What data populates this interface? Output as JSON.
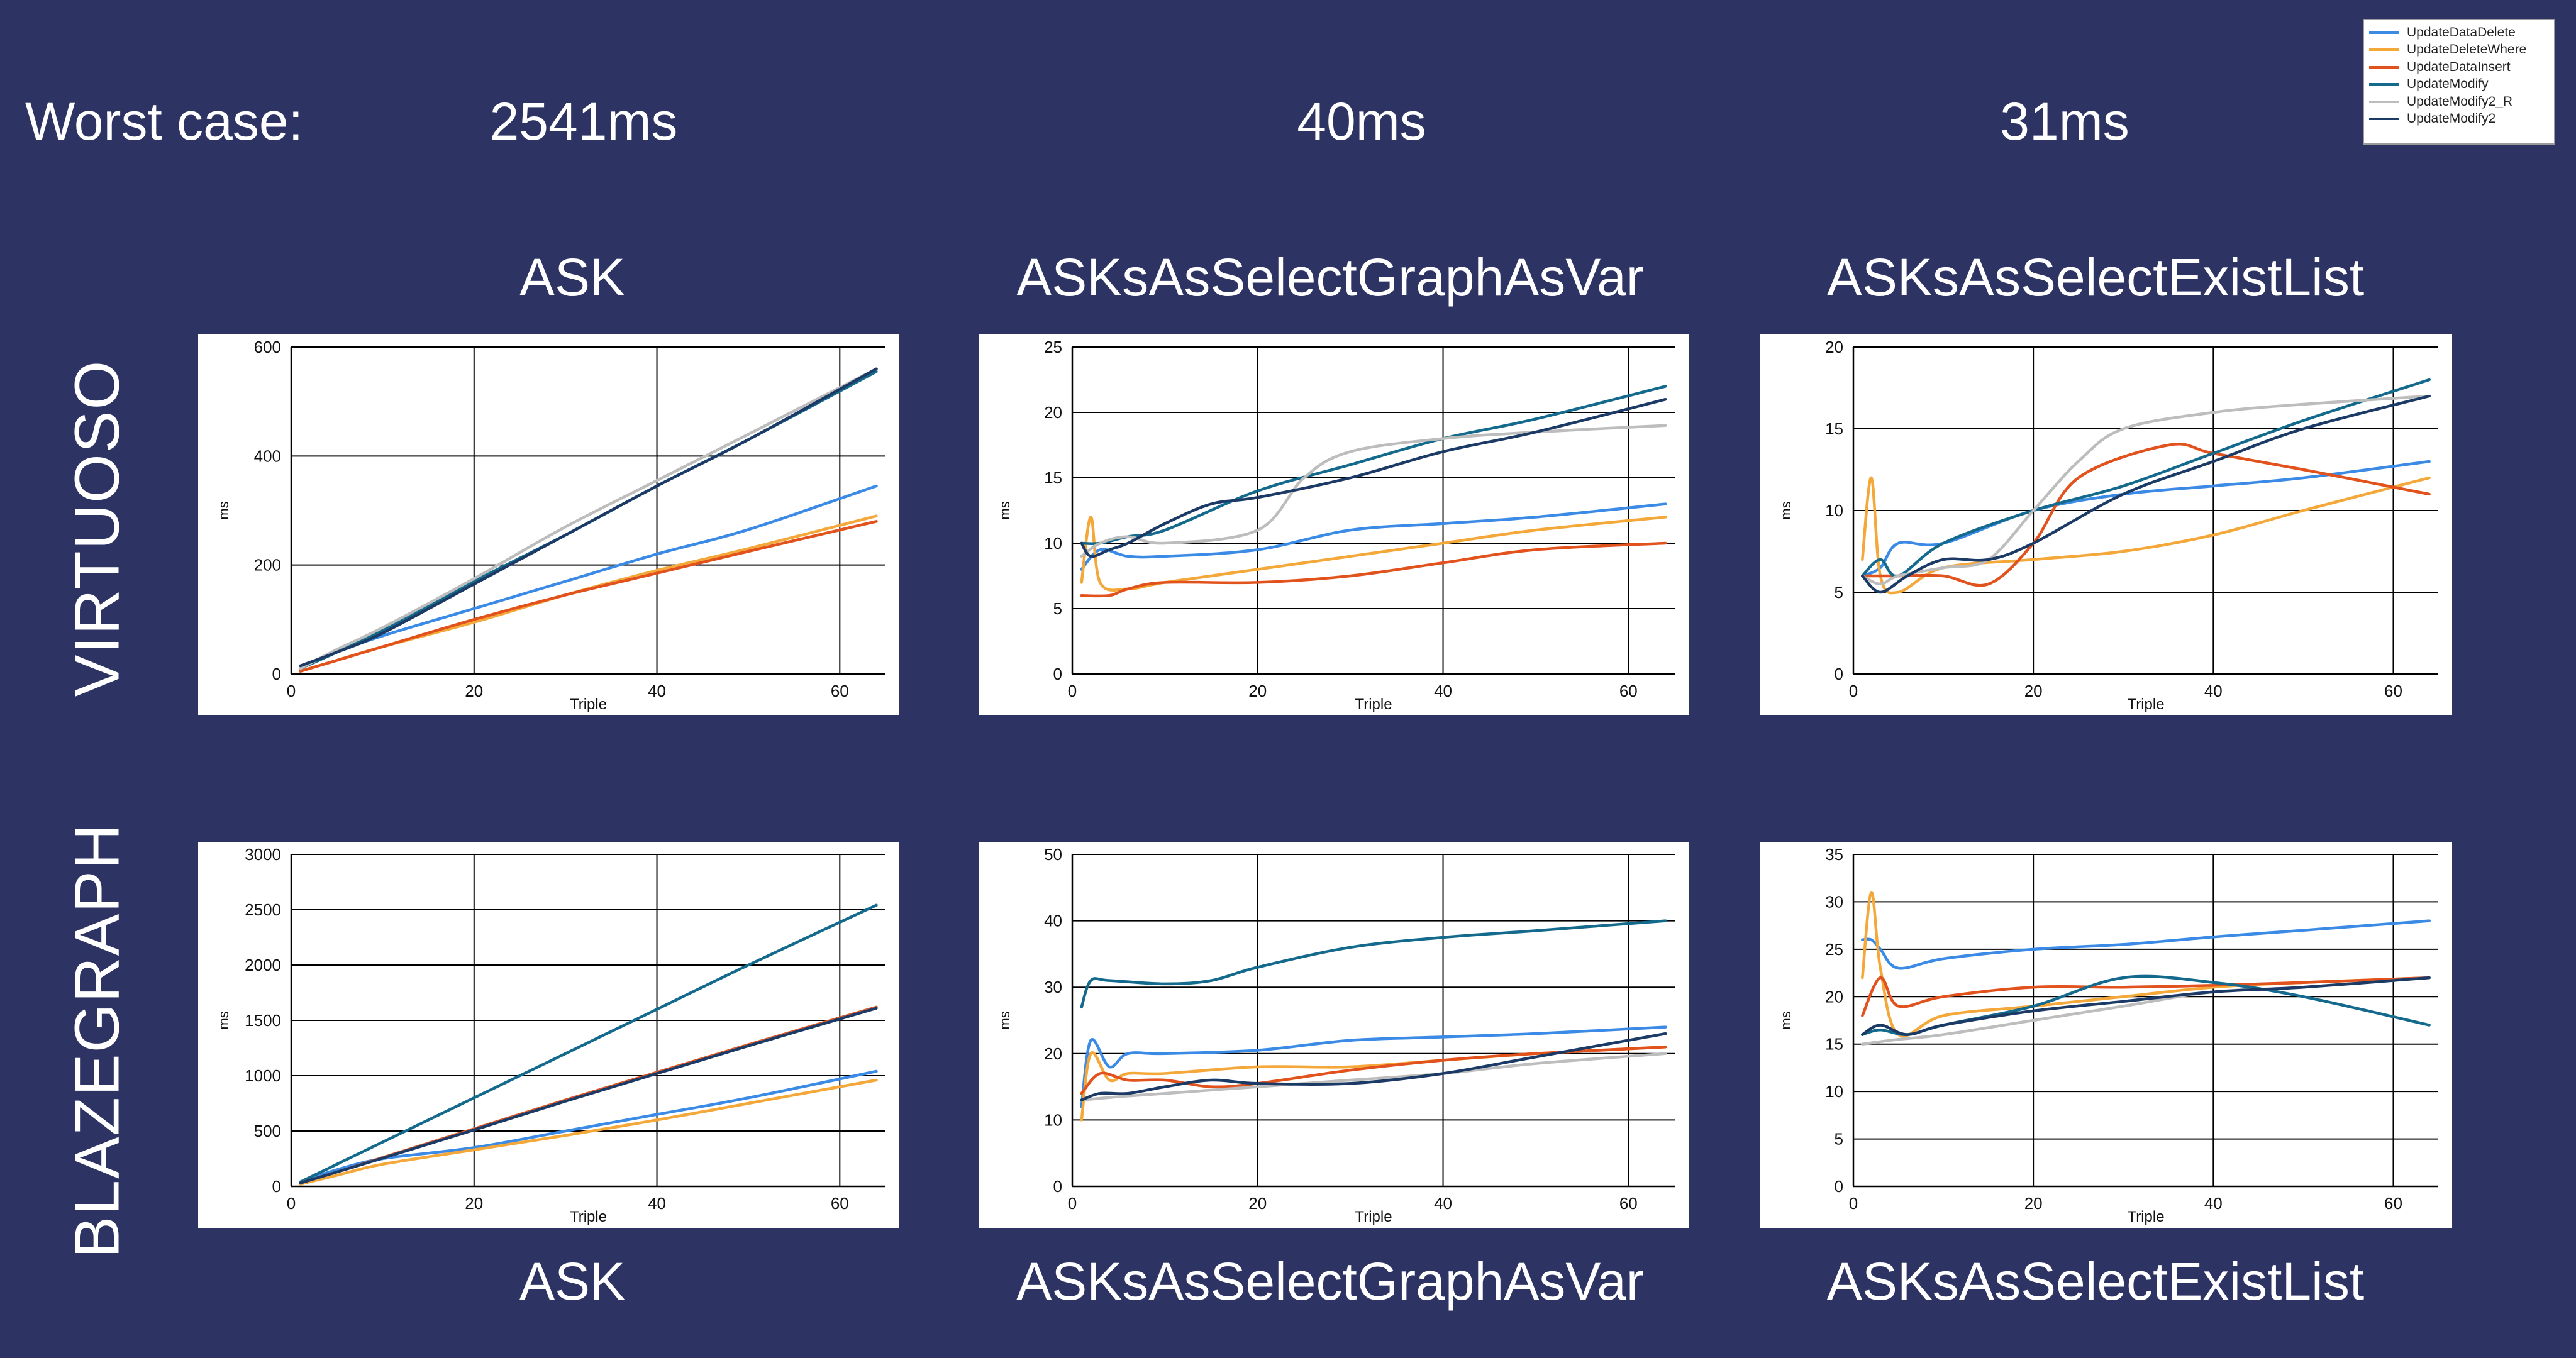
{
  "header": {
    "label": "Worst case:",
    "values": [
      "2541ms",
      "40ms",
      "31ms"
    ]
  },
  "columns": [
    "ASK",
    "ASKsAsSelectGraphAsVar",
    "ASKsAsSelectExistList"
  ],
  "rows": [
    "VIRTUOSO",
    "BLAZEGRAPH"
  ],
  "legend": [
    {
      "name": "UpdateDataDelete",
      "color": "#3b8be6"
    },
    {
      "name": "UpdateDeleteWhere",
      "color": "#f5a83a"
    },
    {
      "name": "UpdateDataInsert",
      "color": "#e2521d"
    },
    {
      "name": "UpdateModify",
      "color": "#146a8c"
    },
    {
      "name": "UpdateModify2_R",
      "color": "#bdbdbd"
    },
    {
      "name": "UpdateModify2",
      "color": "#1c3a66"
    }
  ],
  "chart_data": [
    {
      "type": "line",
      "title": "ASK",
      "row": "VIRTUOSO",
      "xlabel": "Triple",
      "ylabel": "ms",
      "xlim": [
        0,
        65
      ],
      "ylim": [
        0,
        600
      ],
      "xticks": [
        0,
        20,
        40,
        60
      ],
      "yticks": [
        0,
        200,
        400,
        600
      ],
      "grid": true,
      "series": [
        {
          "name": "UpdateDataDelete",
          "x": [
            1,
            5,
            10,
            20,
            30,
            40,
            50,
            64
          ],
          "y": [
            10,
            40,
            70,
            120,
            170,
            220,
            265,
            345
          ]
        },
        {
          "name": "UpdateDeleteWhere",
          "x": [
            1,
            5,
            10,
            20,
            30,
            40,
            50,
            64
          ],
          "y": [
            5,
            25,
            50,
            95,
            145,
            190,
            230,
            290
          ]
        },
        {
          "name": "UpdateDataInsert",
          "x": [
            1,
            5,
            10,
            20,
            30,
            40,
            50,
            64
          ],
          "y": [
            5,
            25,
            50,
            100,
            145,
            185,
            225,
            280
          ]
        },
        {
          "name": "UpdateModify",
          "x": [
            1,
            5,
            10,
            20,
            30,
            40,
            50,
            64
          ],
          "y": [
            10,
            40,
            80,
            170,
            255,
            345,
            430,
            555
          ]
        },
        {
          "name": "UpdateModify2_R",
          "x": [
            1,
            5,
            10,
            20,
            30,
            40,
            50,
            64
          ],
          "y": [
            10,
            45,
            85,
            175,
            270,
            355,
            440,
            560
          ]
        },
        {
          "name": "UpdateModify2",
          "x": [
            1,
            5,
            10,
            20,
            30,
            40,
            50,
            64
          ],
          "y": [
            15,
            40,
            75,
            165,
            255,
            345,
            430,
            560
          ]
        }
      ]
    },
    {
      "type": "line",
      "title": "ASKsAsSelectGraphAsVar",
      "row": "VIRTUOSO",
      "xlabel": "Triple",
      "ylabel": "ms",
      "xlim": [
        0,
        65
      ],
      "ylim": [
        0,
        25
      ],
      "xticks": [
        0,
        20,
        40,
        60
      ],
      "yticks": [
        0,
        5,
        10,
        15,
        20,
        25
      ],
      "grid": true,
      "series": [
        {
          "name": "UpdateDataDelete",
          "x": [
            1,
            3,
            6,
            10,
            20,
            30,
            40,
            50,
            64
          ],
          "y": [
            8,
            9.5,
            9,
            9,
            9.5,
            11,
            11.5,
            12,
            13
          ]
        },
        {
          "name": "UpdateDeleteWhere",
          "x": [
            1,
            2,
            3,
            6,
            10,
            20,
            30,
            40,
            50,
            64
          ],
          "y": [
            7,
            12,
            7,
            6.5,
            7,
            8,
            9,
            10,
            11,
            12
          ]
        },
        {
          "name": "UpdateDataInsert",
          "x": [
            1,
            4,
            6,
            10,
            20,
            30,
            40,
            50,
            64
          ],
          "y": [
            6,
            6,
            6.5,
            7,
            7,
            7.5,
            8.5,
            9.5,
            10
          ]
        },
        {
          "name": "UpdateModify",
          "x": [
            1,
            3,
            6,
            10,
            20,
            30,
            40,
            50,
            64
          ],
          "y": [
            10,
            10,
            10.5,
            11,
            14,
            16,
            18,
            19.5,
            22
          ]
        },
        {
          "name": "UpdateModify2_R",
          "x": [
            1,
            3,
            6,
            10,
            20,
            25,
            30,
            40,
            50,
            64
          ],
          "y": [
            9,
            10,
            10.5,
            10,
            11,
            15,
            17,
            18,
            18.5,
            19
          ]
        },
        {
          "name": "UpdateModify2",
          "x": [
            1,
            2,
            4,
            6,
            10,
            15,
            20,
            30,
            40,
            50,
            64
          ],
          "y": [
            10,
            9,
            9.5,
            10,
            11.5,
            13,
            13.5,
            15,
            17,
            18.5,
            21
          ]
        }
      ]
    },
    {
      "type": "line",
      "title": "ASKsAsSelectExistList",
      "row": "VIRTUOSO",
      "xlabel": "Triple",
      "ylabel": "ms",
      "xlim": [
        0,
        65
      ],
      "ylim": [
        0,
        20
      ],
      "xticks": [
        0,
        20,
        40,
        60
      ],
      "yticks": [
        0,
        5,
        10,
        15,
        20
      ],
      "grid": true,
      "series": [
        {
          "name": "UpdateDataDelete",
          "x": [
            1,
            3,
            5,
            10,
            20,
            30,
            40,
            50,
            64
          ],
          "y": [
            6,
            6.5,
            8,
            8,
            10,
            11,
            11.5,
            12,
            13
          ]
        },
        {
          "name": "UpdateDeleteWhere",
          "x": [
            1,
            2,
            3,
            5,
            10,
            20,
            30,
            40,
            50,
            64
          ],
          "y": [
            7,
            12,
            6,
            5,
            6.5,
            7,
            7.5,
            8.5,
            10,
            12
          ]
        },
        {
          "name": "UpdateDataInsert",
          "x": [
            1,
            5,
            10,
            15,
            20,
            25,
            35,
            40,
            50,
            64
          ],
          "y": [
            6,
            6,
            6,
            5.5,
            8,
            12,
            14,
            13.5,
            12.5,
            11
          ]
        },
        {
          "name": "UpdateModify",
          "x": [
            1,
            3,
            5,
            10,
            20,
            30,
            40,
            50,
            64
          ],
          "y": [
            6,
            7,
            6,
            8,
            10,
            11.5,
            13.5,
            15.5,
            18
          ]
        },
        {
          "name": "UpdateModify2_R",
          "x": [
            1,
            3,
            5,
            10,
            15,
            20,
            25,
            30,
            40,
            50,
            64
          ],
          "y": [
            6,
            5.5,
            6,
            6.5,
            7,
            10,
            13,
            15,
            16,
            16.5,
            17
          ]
        },
        {
          "name": "UpdateModify2",
          "x": [
            1,
            3,
            6,
            10,
            15,
            20,
            30,
            40,
            50,
            64
          ],
          "y": [
            6,
            5,
            6,
            7,
            7,
            8,
            11,
            13,
            15,
            17
          ]
        }
      ]
    },
    {
      "type": "line",
      "title": "ASK",
      "row": "BLAZEGRAPH",
      "xlabel": "Triple",
      "ylabel": "ms",
      "xlim": [
        0,
        65
      ],
      "ylim": [
        0,
        3000
      ],
      "xticks": [
        0,
        20,
        40,
        60
      ],
      "yticks": [
        0,
        500,
        1000,
        1500,
        2000,
        2500,
        3000
      ],
      "grid": true,
      "series": [
        {
          "name": "UpdateDataDelete",
          "x": [
            1,
            5,
            10,
            20,
            30,
            40,
            50,
            64
          ],
          "y": [
            40,
            150,
            250,
            350,
            500,
            650,
            800,
            1040
          ]
        },
        {
          "name": "UpdateDeleteWhere",
          "x": [
            1,
            5,
            10,
            20,
            30,
            40,
            50,
            64
          ],
          "y": [
            20,
            100,
            200,
            330,
            460,
            600,
            750,
            960
          ]
        },
        {
          "name": "UpdateDataInsert",
          "x": [
            1,
            5,
            10,
            20,
            30,
            40,
            50,
            64
          ],
          "y": [
            30,
            130,
            260,
            520,
            780,
            1030,
            1280,
            1620
          ]
        },
        {
          "name": "UpdateModify",
          "x": [
            1,
            5,
            10,
            20,
            30,
            40,
            50,
            64
          ],
          "y": [
            40,
            200,
            400,
            800,
            1200,
            1600,
            2000,
            2541
          ]
        },
        {
          "name": "UpdateModify2_R",
          "x": [
            1,
            5,
            10,
            20,
            30,
            40,
            50,
            64
          ],
          "y": [
            30,
            130,
            255,
            510,
            770,
            1020,
            1270,
            1610
          ]
        },
        {
          "name": "UpdateModify2",
          "x": [
            1,
            5,
            10,
            20,
            30,
            40,
            50,
            64
          ],
          "y": [
            30,
            130,
            255,
            510,
            770,
            1020,
            1270,
            1610
          ]
        }
      ]
    },
    {
      "type": "line",
      "title": "ASKsAsSelectGraphAsVar",
      "row": "BLAZEGRAPH",
      "xlabel": "Triple",
      "ylabel": "ms",
      "xlim": [
        0,
        65
      ],
      "ylim": [
        0,
        50
      ],
      "xticks": [
        0,
        20,
        40,
        60
      ],
      "yticks": [
        0,
        10,
        20,
        30,
        40,
        50
      ],
      "grid": true,
      "series": [
        {
          "name": "UpdateDataDelete",
          "x": [
            1,
            2,
            4,
            6,
            10,
            20,
            30,
            40,
            50,
            64
          ],
          "y": [
            12,
            22,
            18,
            20,
            20,
            20.5,
            22,
            22.5,
            23,
            24
          ]
        },
        {
          "name": "UpdateDeleteWhere",
          "x": [
            1,
            2,
            4,
            6,
            10,
            20,
            30,
            40,
            50,
            64
          ],
          "y": [
            10,
            20,
            16,
            17,
            17,
            18,
            18,
            19,
            20,
            21
          ]
        },
        {
          "name": "UpdateDataInsert",
          "x": [
            1,
            3,
            6,
            10,
            15,
            20,
            30,
            40,
            50,
            64
          ],
          "y": [
            14,
            17,
            16,
            16,
            15,
            15.5,
            17.5,
            19,
            20,
            21
          ]
        },
        {
          "name": "UpdateModify",
          "x": [
            1,
            2,
            4,
            10,
            15,
            20,
            30,
            40,
            50,
            64
          ],
          "y": [
            27,
            31,
            31,
            30.5,
            31,
            33,
            36,
            37.5,
            38.5,
            40
          ]
        },
        {
          "name": "UpdateModify2_R",
          "x": [
            1,
            5,
            10,
            20,
            30,
            40,
            50,
            64
          ],
          "y": [
            13,
            13.5,
            14,
            15,
            16,
            17,
            18.5,
            20
          ]
        },
        {
          "name": "UpdateModify2",
          "x": [
            1,
            3,
            6,
            10,
            15,
            20,
            30,
            40,
            50,
            64
          ],
          "y": [
            13,
            14,
            14,
            15,
            16,
            15.5,
            15.5,
            17,
            19.5,
            23
          ]
        }
      ]
    },
    {
      "type": "line",
      "title": "ASKsAsSelectExistList",
      "row": "BLAZEGRAPH",
      "xlabel": "Triple",
      "ylabel": "ms",
      "xlim": [
        0,
        65
      ],
      "ylim": [
        0,
        35
      ],
      "xticks": [
        0,
        20,
        40,
        60
      ],
      "yticks": [
        0,
        5,
        10,
        15,
        20,
        25,
        30,
        35
      ],
      "grid": true,
      "series": [
        {
          "name": "UpdateDataDelete",
          "x": [
            1,
            2,
            3,
            5,
            10,
            20,
            30,
            40,
            50,
            64
          ],
          "y": [
            26,
            26,
            25,
            23,
            24,
            25,
            25.5,
            26.3,
            27,
            28
          ]
        },
        {
          "name": "UpdateDeleteWhere",
          "x": [
            1,
            2,
            3,
            5,
            10,
            20,
            30,
            40,
            50,
            64
          ],
          "y": [
            22,
            31,
            23,
            16,
            18,
            19,
            20,
            21,
            21.5,
            22
          ]
        },
        {
          "name": "UpdateDataInsert",
          "x": [
            1,
            3,
            5,
            10,
            20,
            30,
            40,
            50,
            64
          ],
          "y": [
            18,
            22,
            19,
            20,
            21,
            21,
            21.2,
            21.5,
            22
          ]
        },
        {
          "name": "UpdateModify",
          "x": [
            1,
            3,
            6,
            10,
            20,
            30,
            40,
            50,
            64
          ],
          "y": [
            16,
            16.5,
            16,
            17,
            19,
            22,
            21.5,
            20,
            17
          ]
        },
        {
          "name": "UpdateModify2_R",
          "x": [
            1,
            5,
            10,
            20,
            30,
            40,
            50,
            64
          ],
          "y": [
            15,
            15.5,
            16,
            17.5,
            19,
            20.5,
            21,
            22
          ]
        },
        {
          "name": "UpdateModify2",
          "x": [
            1,
            3,
            6,
            10,
            20,
            30,
            40,
            50,
            64
          ],
          "y": [
            16,
            17,
            16,
            17,
            18.5,
            19.5,
            20.5,
            21,
            22
          ]
        }
      ]
    }
  ]
}
